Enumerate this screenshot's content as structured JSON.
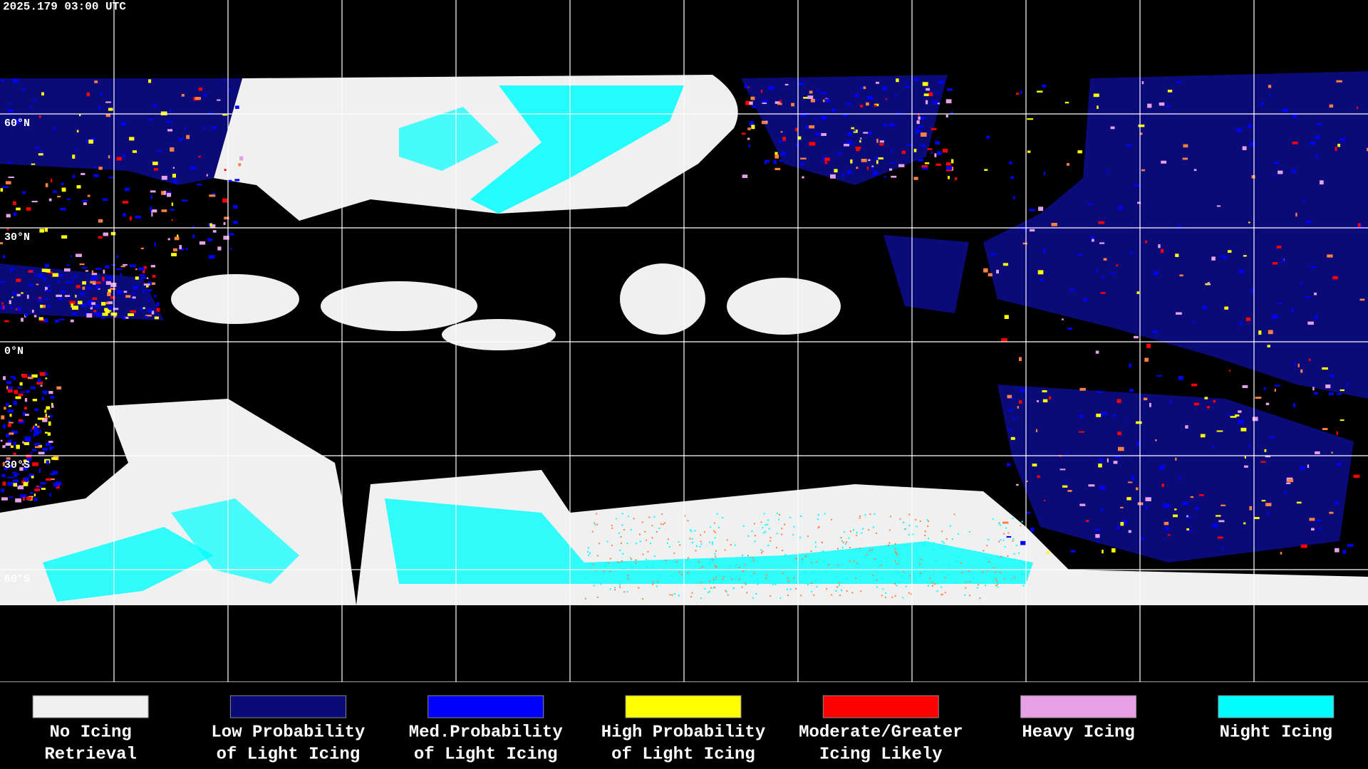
{
  "header": {
    "timestamp": "2025.179 03:00 UTC"
  },
  "map": {
    "latitude_labels": [
      "60°N",
      "30°N",
      "0°N",
      "30°S",
      "60°S"
    ]
  },
  "legend": {
    "items": [
      {
        "color": "#f0f0f0",
        "lines": [
          "No Icing",
          "Retrieval"
        ]
      },
      {
        "color": "#0a0a78",
        "lines": [
          "Low Probability",
          "of Light Icing"
        ]
      },
      {
        "color": "#0000ff",
        "lines": [
          "Med.Probability",
          "of Light Icing"
        ]
      },
      {
        "color": "#ffff00",
        "lines": [
          "High Probability",
          "of Light Icing"
        ]
      },
      {
        "color": "#ff0000",
        "lines": [
          "Moderate/Greater",
          "Icing Likely"
        ]
      },
      {
        "color": "#e6a0e6",
        "lines": [
          "Heavy Icing"
        ]
      },
      {
        "color": "#00ffff",
        "lines": [
          "Night Icing"
        ]
      }
    ]
  }
}
